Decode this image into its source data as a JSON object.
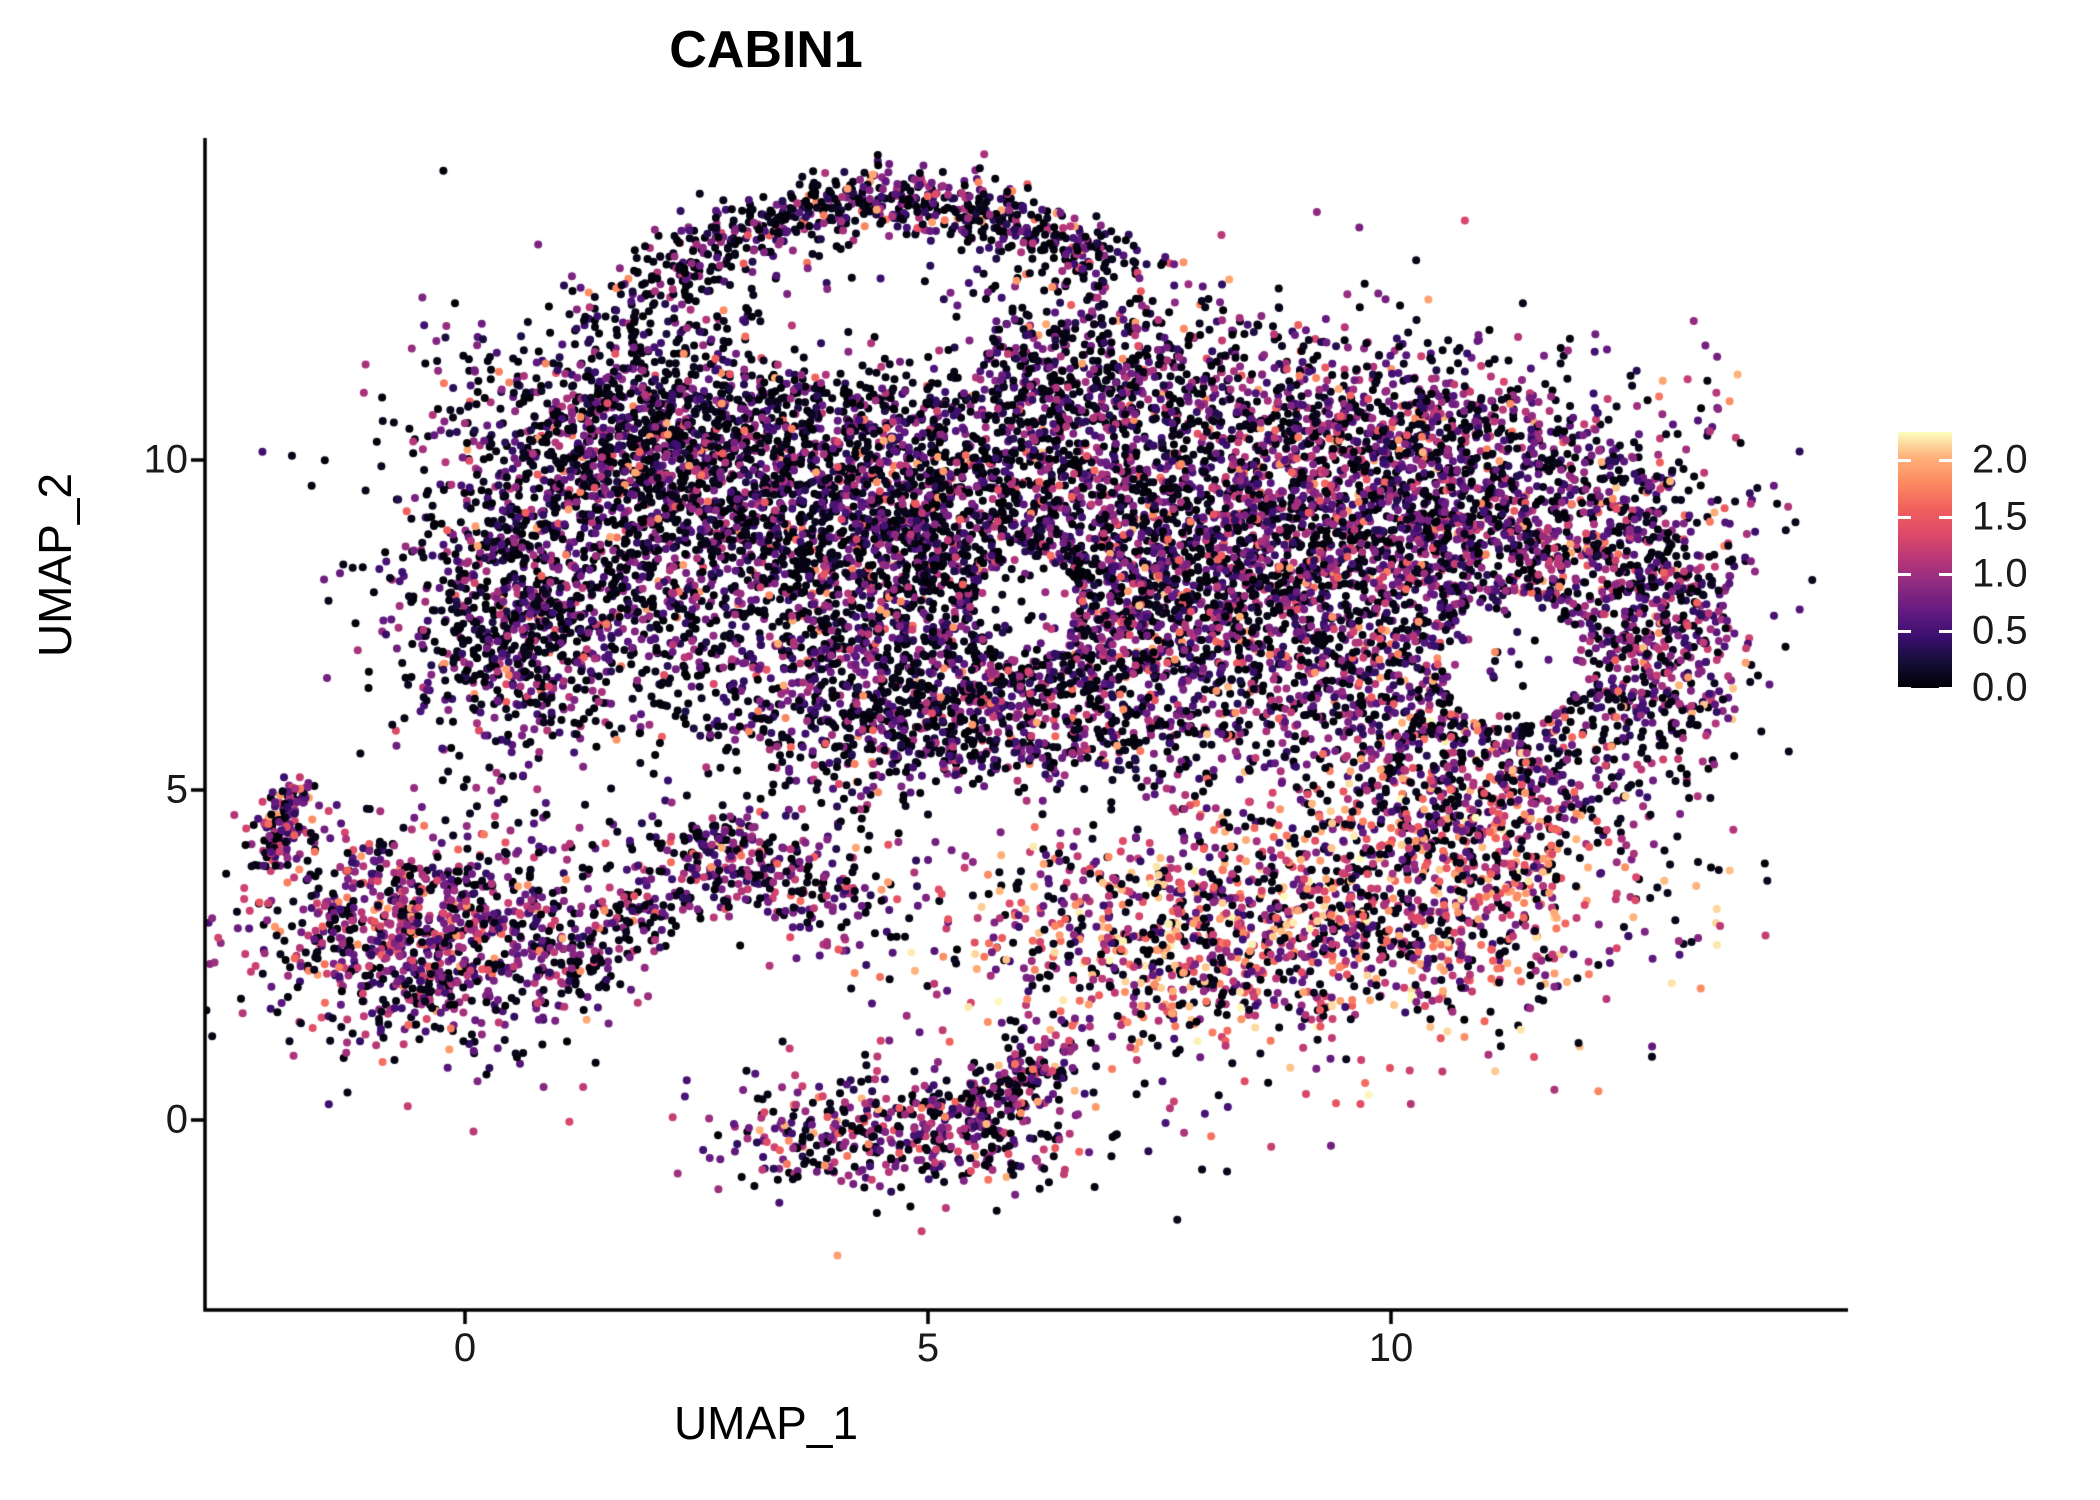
{
  "chart_data": {
    "type": "scatter",
    "title": "CABIN1",
    "xlabel": "UMAP_1",
    "ylabel": "UMAP_2",
    "x_ticks": [
      "0",
      "5",
      "10"
    ],
    "x_tick_values": [
      0,
      5,
      10
    ],
    "y_ticks": [
      "10",
      "5",
      "0"
    ],
    "y_tick_values": [
      10,
      5,
      0
    ],
    "xlim": [
      -2.8,
      14.9
    ],
    "ylim": [
      -2.9,
      14.8
    ],
    "grid": false,
    "point_radius_px": 4,
    "seed": 421,
    "legend": {
      "position": "right",
      "ticks": [
        "2.0",
        "1.5",
        "1.0",
        "0.5",
        "0.0"
      ],
      "tick_values": [
        2.0,
        1.5,
        1.0,
        0.5,
        0.0
      ],
      "vmin": 0.0,
      "vmax": 2.25
    },
    "colormap": [
      "#000004",
      "#140e36",
      "#3b0f70",
      "#641a80",
      "#8c2981",
      "#b73779",
      "#de4968",
      "#f1605d",
      "#fc8961",
      "#feb078",
      "#fcfdbf"
    ],
    "palettes": {
      "dark": {
        "black": 0.52,
        "mid": [
          0.25,
          1.15
        ],
        "mid_p": 0.43,
        "warm": [
          1.25,
          2.0
        ]
      },
      "mixed": {
        "black": 0.4,
        "mid": [
          0.3,
          1.25
        ],
        "mid_p": 0.52,
        "warm": [
          1.25,
          2.1
        ]
      },
      "warm": {
        "black": 0.3,
        "mid": [
          0.4,
          1.2
        ],
        "mid_p": 0.3,
        "warm": [
          1.1,
          2.25
        ]
      },
      "purple": {
        "black": 0.33,
        "mid": [
          0.35,
          1.3
        ],
        "mid_p": 0.57,
        "warm": [
          1.3,
          2.0
        ]
      }
    },
    "clusters": [
      {
        "name": "top-arc",
        "type": "curve",
        "p0": [
          1.7,
          12.3
        ],
        "p1": [
          4.5,
          15.3
        ],
        "p2": [
          7.0,
          12.8
        ],
        "jitter": 0.28,
        "n": 750,
        "palette": "dark"
      },
      {
        "name": "upper-left-lobe",
        "type": "gauss",
        "cx": 2.9,
        "cy": 9.5,
        "sx": 1.5,
        "sy": 1.3,
        "n": 2100,
        "palette": "dark"
      },
      {
        "name": "left-lobe-top",
        "type": "gauss",
        "cx": 1.6,
        "cy": 10.6,
        "sx": 0.9,
        "sy": 0.8,
        "n": 500,
        "palette": "dark"
      },
      {
        "name": "mid-lobe",
        "type": "gauss",
        "cx": 5.6,
        "cy": 8.7,
        "sx": 1.4,
        "sy": 1.5,
        "n": 1700,
        "palette": "dark"
      },
      {
        "name": "top-mid",
        "type": "gauss",
        "cx": 6.8,
        "cy": 11.4,
        "sx": 1.0,
        "sy": 0.7,
        "n": 450,
        "palette": "dark"
      },
      {
        "name": "top-right",
        "type": "gauss",
        "cx": 9.8,
        "cy": 10.6,
        "sx": 1.0,
        "sy": 0.6,
        "n": 400,
        "palette": "mixed"
      },
      {
        "name": "right-lobe",
        "type": "gauss",
        "cx": 8.7,
        "cy": 8.5,
        "sx": 1.7,
        "sy": 1.4,
        "n": 2500,
        "palette": "mixed"
      },
      {
        "name": "far-right-lobe",
        "type": "gauss",
        "cx": 11.4,
        "cy": 8.8,
        "sx": 1.2,
        "sy": 1.2,
        "n": 1100,
        "palette": "mixed"
      },
      {
        "name": "right-edge",
        "type": "gauss",
        "cx": 12.9,
        "cy": 7.3,
        "sx": 0.5,
        "sy": 1.1,
        "n": 450,
        "palette": "mixed"
      },
      {
        "name": "right-lower",
        "type": "gauss",
        "cx": 10.9,
        "cy": 5.7,
        "sx": 1.0,
        "sy": 0.8,
        "n": 550,
        "palette": "mixed"
      },
      {
        "name": "left-edge",
        "type": "gauss",
        "cx": 0.6,
        "cy": 7.6,
        "sx": 0.7,
        "sy": 1.1,
        "n": 800,
        "palette": "dark"
      },
      {
        "name": "mid-band",
        "type": "gauss",
        "cx": 6.2,
        "cy": 6.8,
        "sx": 1.2,
        "sy": 0.8,
        "n": 500,
        "palette": "mixed"
      },
      {
        "name": "mid-lower",
        "type": "gauss",
        "cx": 4.6,
        "cy": 5.9,
        "sx": 1.5,
        "sy": 0.8,
        "n": 650,
        "palette": "dark"
      },
      {
        "name": "body-noise",
        "type": "ellipse",
        "cx": 7.0,
        "cy": 8.6,
        "rx": 6.3,
        "ry": 3.6,
        "n": 900,
        "palette": "dark"
      },
      {
        "name": "left-cluster",
        "type": "gauss",
        "cx": -0.45,
        "cy": 2.8,
        "sx": 1.0,
        "sy": 0.85,
        "n": 1050,
        "palette": "purple"
      },
      {
        "name": "left-tail",
        "type": "strip",
        "p0": [
          -2.1,
          3.9
        ],
        "p1": [
          -1.8,
          5.05
        ],
        "jitter": 0.12,
        "n": 130,
        "palette": "purple"
      },
      {
        "name": "connector",
        "type": "strip",
        "p0": [
          0.9,
          2.1
        ],
        "p1": [
          3.1,
          4.4
        ],
        "jitter": 0.3,
        "n": 230,
        "palette": "mixed"
      },
      {
        "name": "connector-low",
        "type": "strip",
        "p0": [
          2.3,
          4.4
        ],
        "p1": [
          4.2,
          3.1
        ],
        "jitter": 0.35,
        "n": 260,
        "palette": "mixed"
      },
      {
        "name": "bottom-cluster",
        "type": "gauss",
        "cx": 4.7,
        "cy": -0.15,
        "sx": 1.05,
        "sy": 0.5,
        "n": 480,
        "palette": "mixed"
      },
      {
        "name": "bottom-arm",
        "type": "strip",
        "p0": [
          5.3,
          0.1
        ],
        "p1": [
          6.5,
          1.05
        ],
        "jitter": 0.22,
        "n": 170,
        "palette": "mixed"
      },
      {
        "name": "warm-band",
        "type": "gauss",
        "cx": 8.6,
        "cy": 2.9,
        "sx": 1.8,
        "sy": 0.95,
        "n": 1500,
        "palette": "warm"
      },
      {
        "name": "warm-right",
        "type": "gauss",
        "cx": 10.9,
        "cy": 4.2,
        "sx": 0.9,
        "sy": 0.9,
        "n": 450,
        "palette": "warm"
      }
    ],
    "holes": [
      {
        "cx": 6.05,
        "cy": 7.75,
        "rx": 0.55,
        "ry": 0.8,
        "keep": 0.12
      },
      {
        "cx": 11.3,
        "cy": 6.95,
        "rx": 0.75,
        "ry": 1.0,
        "keep": 0.1
      },
      {
        "cx": 4.4,
        "cy": 11.85,
        "rx": 1.25,
        "ry": 0.7,
        "keep": 0.25
      },
      {
        "cx": 2.0,
        "cy": 5.1,
        "rx": 1.3,
        "ry": 0.6,
        "keep": 0.3
      },
      {
        "cx": 6.0,
        "cy": 4.7,
        "rx": 1.6,
        "ry": 0.55,
        "keep": 0.35
      }
    ]
  }
}
